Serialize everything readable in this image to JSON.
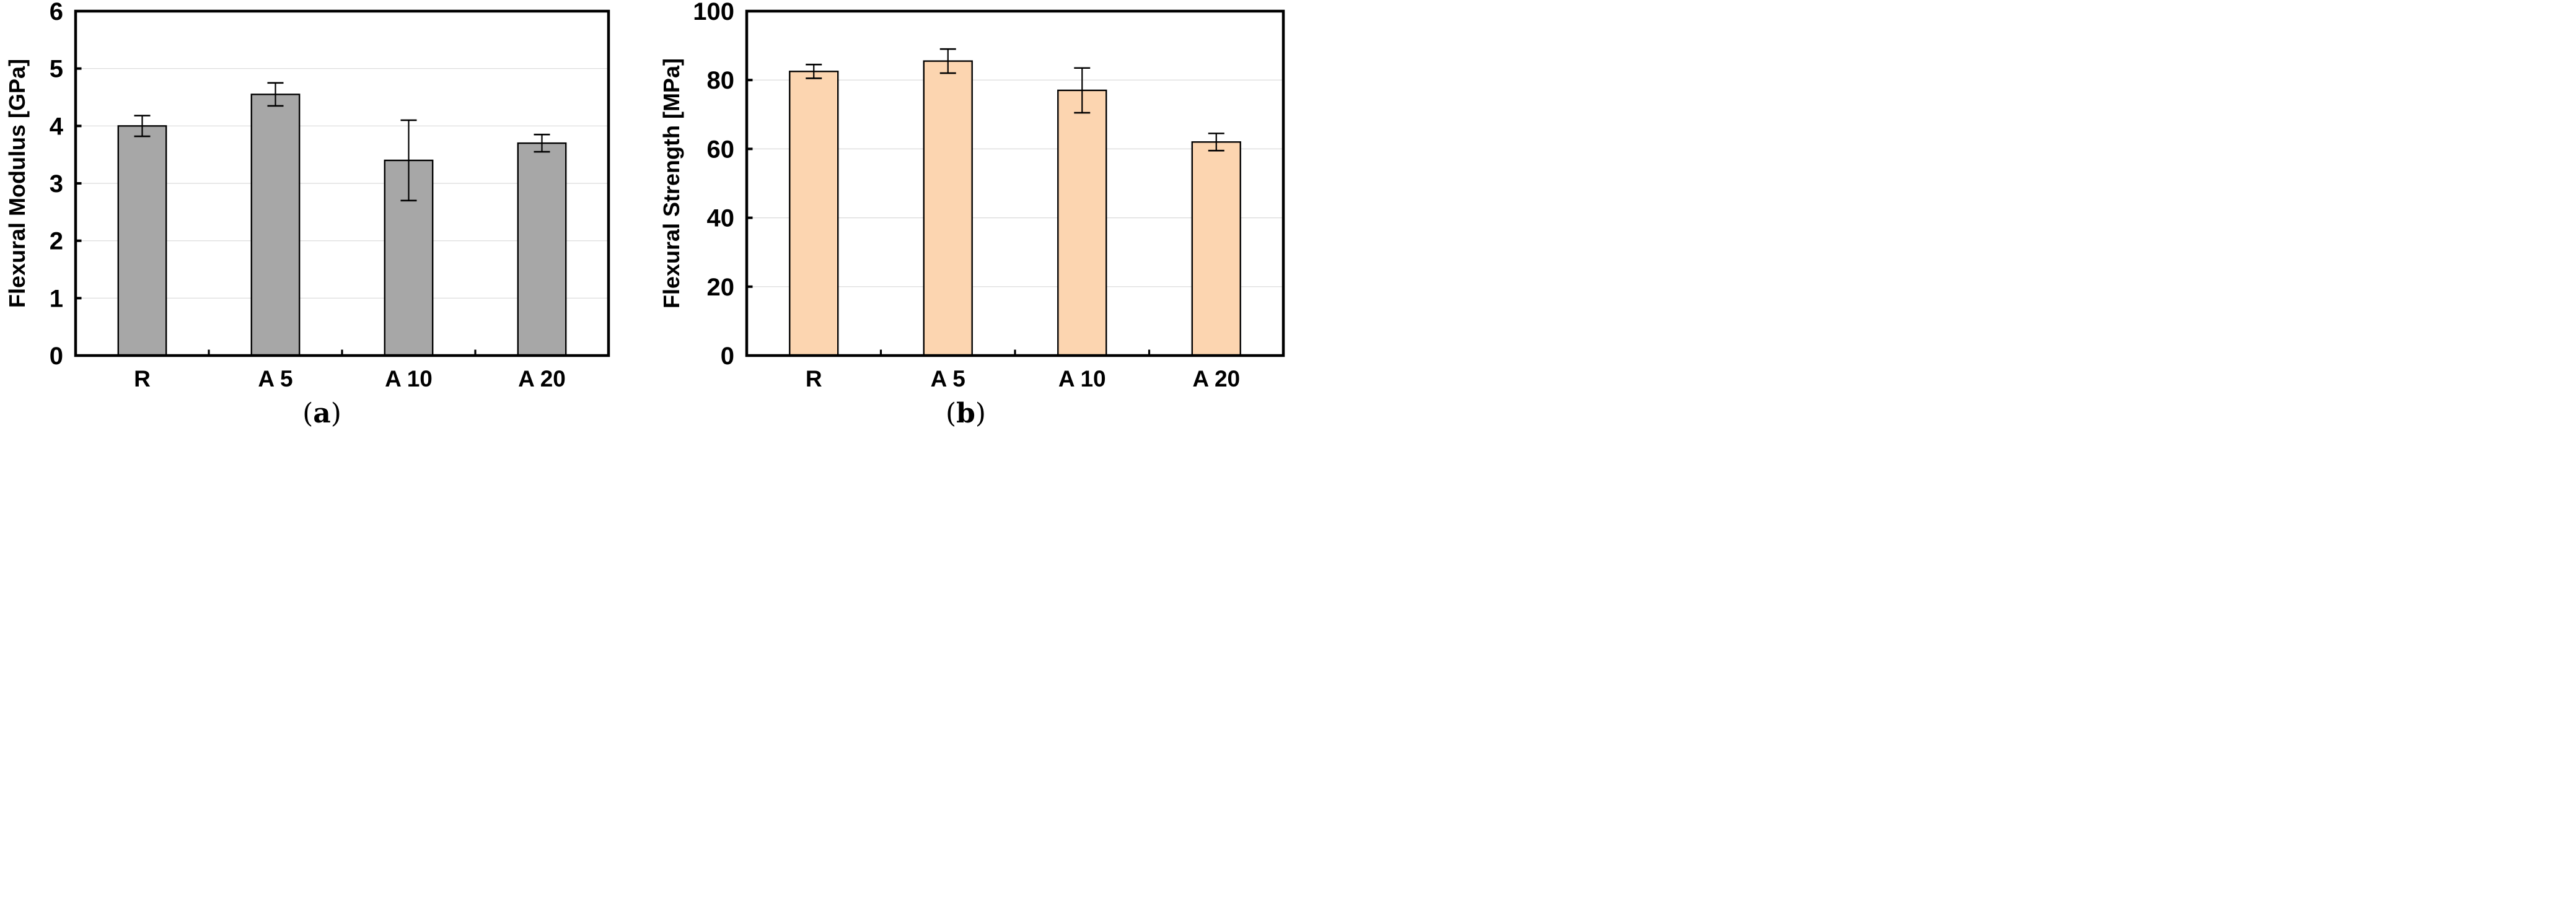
{
  "page": {
    "background": "#ffffff",
    "description_colors": {
      "axis_and_text": "#000000",
      "gridline": "#d9d9d9",
      "panel_a_bar_fill": "#a7a7a7",
      "panel_b_bar_fill": "#fcd5b0"
    }
  },
  "figure": {
    "panels": [
      {
        "caption": {
          "open": "(",
          "letter": "a",
          "close": ")"
        }
      },
      {
        "caption": {
          "open": "(",
          "letter": "b",
          "close": ")"
        }
      }
    ]
  },
  "chart_data": [
    {
      "type": "bar",
      "title": "",
      "xlabel": "",
      "ylabel": "Flexural Modulus [GPa]",
      "categories": [
        "R",
        "A 5",
        "A 10",
        "A 20"
      ],
      "values": [
        4.0,
        4.55,
        3.4,
        3.7
      ],
      "error_bars": [
        0.18,
        0.2,
        0.7,
        0.15
      ],
      "ylim": [
        0,
        6
      ],
      "yticks": [
        0,
        1,
        2,
        3,
        4,
        5,
        6
      ],
      "ytick_labels": [
        "0",
        "1",
        "2",
        "3",
        "4",
        "5",
        "6"
      ],
      "grid": "horizontal",
      "legend": "none",
      "bar_fill": "#a7a7a7",
      "bar_stroke": "#000000",
      "gridline_color": "#d9d9d9"
    },
    {
      "type": "bar",
      "title": "",
      "xlabel": "",
      "ylabel": "Flexural Strength [MPa]",
      "categories": [
        "R",
        "A 5",
        "A 10",
        "A 20"
      ],
      "values": [
        82.5,
        85.5,
        77.0,
        62.0
      ],
      "error_bars": [
        2.0,
        3.5,
        6.5,
        2.5
      ],
      "ylim": [
        0,
        100
      ],
      "yticks": [
        0,
        20,
        40,
        60,
        80,
        100
      ],
      "ytick_labels": [
        "0",
        "20",
        "40",
        "60",
        "80",
        "100"
      ],
      "grid": "horizontal",
      "legend": "none",
      "bar_fill": "#fcd5b0",
      "bar_stroke": "#000000",
      "gridline_color": "#d9d9d9"
    }
  ]
}
